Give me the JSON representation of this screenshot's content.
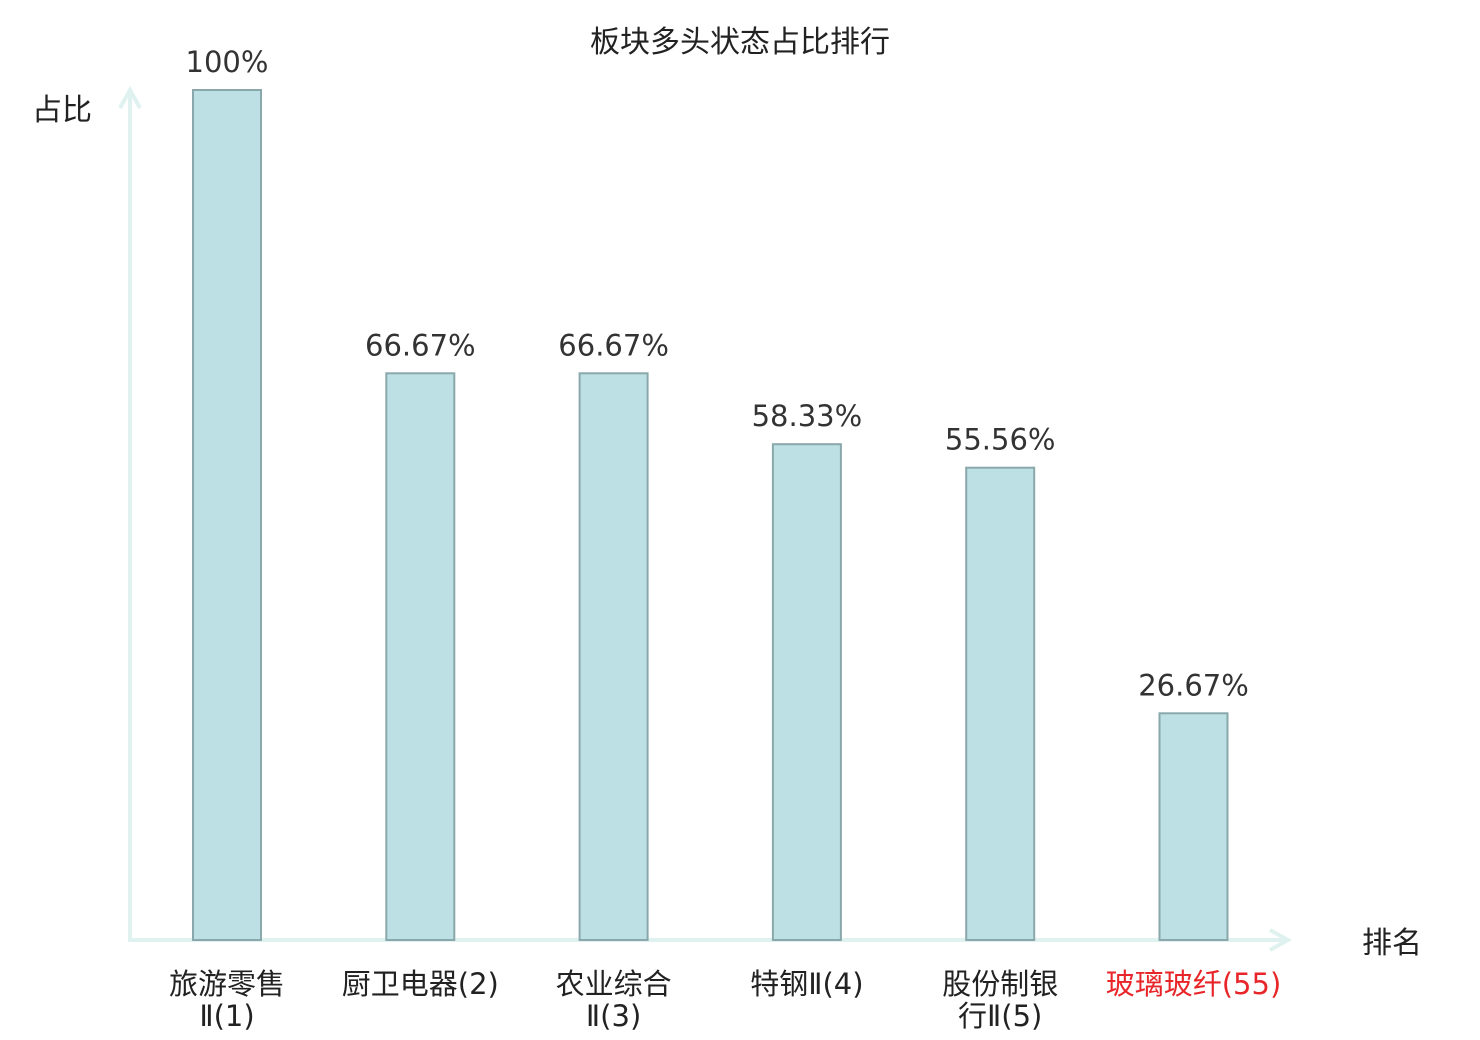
{
  "chart_data": {
    "type": "bar",
    "title": "板块多头状态占比排行",
    "ylabel": "占比",
    "xlabel": "排名",
    "ylim": [
      0,
      100
    ],
    "grid": false,
    "categories": [
      {
        "name_lines": [
          "旅游零售",
          "Ⅱ(1)"
        ],
        "highlight": false
      },
      {
        "name_lines": [
          "厨卫电器(2)"
        ],
        "highlight": false
      },
      {
        "name_lines": [
          "农业综合",
          "Ⅱ(3)"
        ],
        "highlight": false
      },
      {
        "name_lines": [
          "特钢Ⅱ(4)"
        ],
        "highlight": false
      },
      {
        "name_lines": [
          "股份制银",
          "行Ⅱ(5)"
        ],
        "highlight": false
      },
      {
        "name_lines": [
          "玻璃玻纤(55)"
        ],
        "highlight": true
      }
    ],
    "values": [
      100,
      66.67,
      66.67,
      58.33,
      55.56,
      26.67
    ],
    "value_labels": [
      "100%",
      "66.67%",
      "66.67%",
      "58.33%",
      "55.56%",
      "26.67%"
    ],
    "colors": {
      "bar_fill": "#bce0e3",
      "bar_stroke": "#8aa8ab",
      "axis": "#dff2ef",
      "text": "#333333",
      "highlight_text": "#e8262a"
    }
  }
}
